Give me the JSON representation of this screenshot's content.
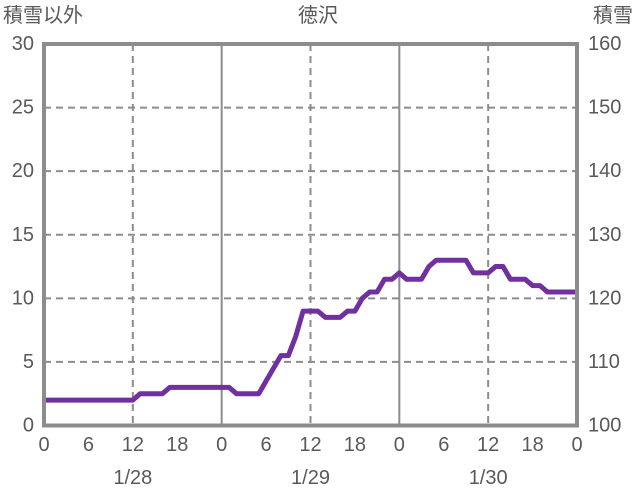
{
  "page": {
    "background": "#ffffff"
  },
  "chart_data": {
    "type": "line",
    "title": "徳沢",
    "left_axis": {
      "label": "積雪以外",
      "min": 0,
      "max": 30,
      "ticks": [
        30,
        25,
        20,
        15,
        10,
        5,
        0
      ]
    },
    "right_axis": {
      "label": "積雪",
      "min": 100,
      "max": 160,
      "ticks": [
        160,
        150,
        140,
        130,
        120,
        110,
        100
      ]
    },
    "x_axis": {
      "hours_total": 72,
      "tick_interval_hours": 6,
      "tick_labels": [
        "0",
        "6",
        "12",
        "18",
        "0",
        "6",
        "12",
        "18",
        "0",
        "6",
        "12",
        "18",
        "0"
      ],
      "date_labels": [
        "1/28",
        "1/29",
        "1/30"
      ]
    },
    "grid": {
      "h_dashed_right_values": [
        110,
        120,
        130,
        140,
        150
      ],
      "v_dashed_hours": [
        12,
        36,
        60
      ],
      "v_solid_hours": [
        24,
        48
      ]
    },
    "series": [
      {
        "name": "積雪",
        "axis": "right",
        "unit": "cm",
        "x_start_hour": 0,
        "x_step_hours": 1,
        "values": [
          104,
          104,
          104,
          104,
          104,
          104,
          104,
          104,
          104,
          104,
          104,
          104,
          104,
          105,
          105,
          105,
          105,
          106,
          106,
          106,
          106,
          106,
          106,
          106,
          106,
          106,
          105,
          105,
          105,
          105,
          107,
          109,
          111,
          111,
          114,
          118,
          118,
          118,
          117,
          117,
          117,
          118,
          118,
          120,
          121,
          121,
          123,
          123,
          124,
          123,
          123,
          123,
          125,
          126,
          126,
          126,
          126,
          126,
          124,
          124,
          124,
          125,
          125,
          123,
          123,
          123,
          122,
          122,
          121,
          121,
          121,
          121,
          121
        ]
      }
    ],
    "colors": {
      "line": "#7030a0",
      "grid": "#8c8c8c",
      "border": "#8c8c8c",
      "text": "#595959"
    },
    "layout_hints": {
      "grid_on": true,
      "legend": "none"
    }
  }
}
